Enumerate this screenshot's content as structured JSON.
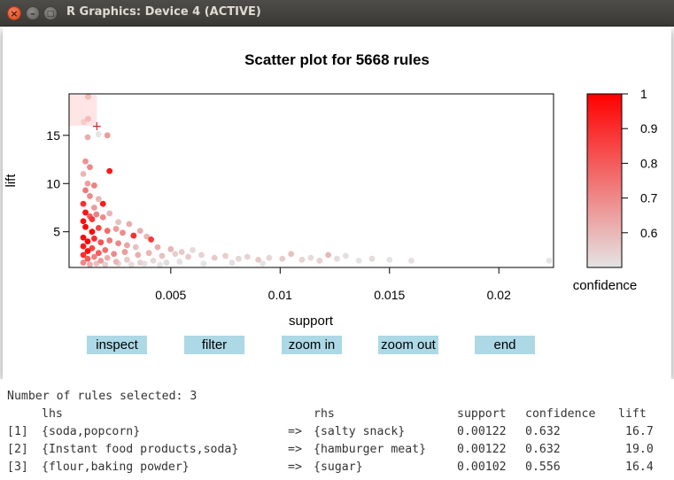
{
  "window": {
    "title": "R Graphics: Device 4 (ACTIVE)",
    "close_glyph": "×",
    "minimize_glyph": "–",
    "maximize_glyph": "□"
  },
  "chart_data": {
    "type": "scatter",
    "title": "Scatter plot for 5668 rules",
    "xlabel": "support",
    "ylabel": "lift",
    "xlim": [
      0.00035,
      0.0225
    ],
    "ylim": [
      1.3,
      19.3
    ],
    "x_ticks": [
      0.005,
      0.01,
      0.015,
      0.02
    ],
    "x_tick_labels": [
      "0.005",
      "0.01",
      "0.015",
      "0.02"
    ],
    "y_ticks": [
      5,
      10,
      15
    ],
    "y_tick_labels": [
      "5",
      "10",
      "15"
    ],
    "color_scale": {
      "label": "confidence",
      "min": 0.5,
      "max": 1.0,
      "ticks": [
        0.6,
        0.7,
        0.8,
        0.9,
        1.0
      ],
      "tick_labels": [
        "0.6",
        "0.7",
        "0.8",
        "0.9",
        "1"
      ],
      "low_color": "#e4e4e4",
      "high_color": "#ff0000"
    },
    "selection": {
      "support_range": [
        0.00102,
        0.00122
      ],
      "lift_range": [
        16.0,
        19.2
      ],
      "marker": "+"
    },
    "points": [
      {
        "x": 0.00122,
        "y": 19.0,
        "c": 0.632
      },
      {
        "x": 0.00102,
        "y": 16.4,
        "c": 0.556
      },
      {
        "x": 0.00122,
        "y": 16.7,
        "c": 0.632
      },
      {
        "x": 0.0012,
        "y": 14.8,
        "c": 0.62
      },
      {
        "x": 0.0017,
        "y": 15.1,
        "c": 0.5
      },
      {
        "x": 0.0021,
        "y": 15.0,
        "c": 0.66
      },
      {
        "x": 0.0022,
        "y": 11.3,
        "c": 0.95
      },
      {
        "x": 0.0011,
        "y": 12.3,
        "c": 0.68
      },
      {
        "x": 0.0013,
        "y": 11.7,
        "c": 0.7
      },
      {
        "x": 0.001,
        "y": 11.0,
        "c": 0.6
      },
      {
        "x": 0.0012,
        "y": 10.0,
        "c": 0.65
      },
      {
        "x": 0.0015,
        "y": 9.8,
        "c": 0.72
      },
      {
        "x": 0.0011,
        "y": 9.3,
        "c": 0.74
      },
      {
        "x": 0.0013,
        "y": 8.7,
        "c": 0.7
      },
      {
        "x": 0.0017,
        "y": 8.4,
        "c": 0.6
      },
      {
        "x": 0.001,
        "y": 7.9,
        "c": 0.9
      },
      {
        "x": 0.0015,
        "y": 7.5,
        "c": 0.66
      },
      {
        "x": 0.0019,
        "y": 7.9,
        "c": 0.94
      },
      {
        "x": 0.0011,
        "y": 7.0,
        "c": 0.96
      },
      {
        "x": 0.0013,
        "y": 6.6,
        "c": 0.8
      },
      {
        "x": 0.0016,
        "y": 6.8,
        "c": 0.72
      },
      {
        "x": 0.001,
        "y": 6.1,
        "c": 0.97
      },
      {
        "x": 0.0014,
        "y": 6.3,
        "c": 0.88
      },
      {
        "x": 0.0019,
        "y": 6.5,
        "c": 0.7
      },
      {
        "x": 0.0022,
        "y": 6.9,
        "c": 0.6
      },
      {
        "x": 0.0026,
        "y": 6.0,
        "c": 0.58
      },
      {
        "x": 0.0031,
        "y": 5.8,
        "c": 0.62
      },
      {
        "x": 0.0011,
        "y": 5.5,
        "c": 0.99
      },
      {
        "x": 0.0014,
        "y": 5.0,
        "c": 0.98
      },
      {
        "x": 0.0017,
        "y": 5.4,
        "c": 0.85
      },
      {
        "x": 0.0021,
        "y": 5.1,
        "c": 0.77
      },
      {
        "x": 0.0025,
        "y": 5.3,
        "c": 0.66
      },
      {
        "x": 0.0028,
        "y": 4.9,
        "c": 0.7
      },
      {
        "x": 0.0033,
        "y": 4.6,
        "c": 0.9
      },
      {
        "x": 0.0036,
        "y": 5.1,
        "c": 0.62
      },
      {
        "x": 0.0041,
        "y": 4.2,
        "c": 0.87
      },
      {
        "x": 0.0039,
        "y": 4.5,
        "c": 0.6
      },
      {
        "x": 0.001,
        "y": 4.4,
        "c": 0.98
      },
      {
        "x": 0.0012,
        "y": 4.0,
        "c": 0.99
      },
      {
        "x": 0.0015,
        "y": 4.3,
        "c": 0.9
      },
      {
        "x": 0.0018,
        "y": 3.9,
        "c": 0.82
      },
      {
        "x": 0.0022,
        "y": 4.1,
        "c": 0.74
      },
      {
        "x": 0.0026,
        "y": 3.8,
        "c": 0.7
      },
      {
        "x": 0.003,
        "y": 3.6,
        "c": 0.64
      },
      {
        "x": 0.0034,
        "y": 3.4,
        "c": 0.58
      },
      {
        "x": 0.0044,
        "y": 3.4,
        "c": 0.62
      },
      {
        "x": 0.005,
        "y": 3.2,
        "c": 0.6
      },
      {
        "x": 0.0055,
        "y": 2.9,
        "c": 0.56
      },
      {
        "x": 0.006,
        "y": 3.1,
        "c": 0.52
      },
      {
        "x": 0.001,
        "y": 3.5,
        "c": 0.95
      },
      {
        "x": 0.0012,
        "y": 3.0,
        "c": 0.97
      },
      {
        "x": 0.0014,
        "y": 3.3,
        "c": 0.85
      },
      {
        "x": 0.0017,
        "y": 2.8,
        "c": 0.8
      },
      {
        "x": 0.002,
        "y": 3.1,
        "c": 0.76
      },
      {
        "x": 0.0024,
        "y": 2.7,
        "c": 0.7
      },
      {
        "x": 0.0029,
        "y": 2.9,
        "c": 0.66
      },
      {
        "x": 0.0035,
        "y": 2.6,
        "c": 0.62
      },
      {
        "x": 0.004,
        "y": 2.8,
        "c": 0.6
      },
      {
        "x": 0.0046,
        "y": 2.5,
        "c": 0.58
      },
      {
        "x": 0.0052,
        "y": 2.7,
        "c": 0.55
      },
      {
        "x": 0.0058,
        "y": 2.4,
        "c": 0.56
      },
      {
        "x": 0.0064,
        "y": 2.6,
        "c": 0.54
      },
      {
        "x": 0.007,
        "y": 2.3,
        "c": 0.56
      },
      {
        "x": 0.0075,
        "y": 2.5,
        "c": 0.55
      },
      {
        "x": 0.0081,
        "y": 2.2,
        "c": 0.53
      },
      {
        "x": 0.0085,
        "y": 2.4,
        "c": 0.54
      },
      {
        "x": 0.009,
        "y": 2.1,
        "c": 0.56
      },
      {
        "x": 0.0095,
        "y": 2.3,
        "c": 0.53
      },
      {
        "x": 0.0101,
        "y": 2.2,
        "c": 0.55
      },
      {
        "x": 0.0105,
        "y": 2.7,
        "c": 0.58
      },
      {
        "x": 0.011,
        "y": 2.1,
        "c": 0.53
      },
      {
        "x": 0.0114,
        "y": 2.3,
        "c": 0.52
      },
      {
        "x": 0.0118,
        "y": 2.0,
        "c": 0.54
      },
      {
        "x": 0.0122,
        "y": 2.6,
        "c": 0.6
      },
      {
        "x": 0.0126,
        "y": 2.2,
        "c": 0.52
      },
      {
        "x": 0.013,
        "y": 2.5,
        "c": 0.51
      },
      {
        "x": 0.0136,
        "y": 2.0,
        "c": 0.5
      },
      {
        "x": 0.0142,
        "y": 2.2,
        "c": 0.52
      },
      {
        "x": 0.015,
        "y": 2.1,
        "c": 0.5
      },
      {
        "x": 0.016,
        "y": 2.0,
        "c": 0.51
      },
      {
        "x": 0.0223,
        "y": 2.0,
        "c": 0.5
      },
      {
        "x": 0.001,
        "y": 2.6,
        "c": 0.9
      },
      {
        "x": 0.0012,
        "y": 2.2,
        "c": 0.8
      },
      {
        "x": 0.0015,
        "y": 2.4,
        "c": 0.72
      },
      {
        "x": 0.0018,
        "y": 2.0,
        "c": 0.66
      },
      {
        "x": 0.0021,
        "y": 2.3,
        "c": 0.62
      },
      {
        "x": 0.0025,
        "y": 1.9,
        "c": 0.6
      },
      {
        "x": 0.003,
        "y": 2.1,
        "c": 0.56
      },
      {
        "x": 0.0036,
        "y": 1.8,
        "c": 0.54
      },
      {
        "x": 0.0042,
        "y": 2.0,
        "c": 0.53
      },
      {
        "x": 0.0048,
        "y": 1.8,
        "c": 0.52
      },
      {
        "x": 0.0054,
        "y": 1.9,
        "c": 0.51
      },
      {
        "x": 0.001,
        "y": 1.8,
        "c": 0.7
      },
      {
        "x": 0.0013,
        "y": 1.6,
        "c": 0.62
      },
      {
        "x": 0.0016,
        "y": 1.7,
        "c": 0.58
      },
      {
        "x": 0.002,
        "y": 1.6,
        "c": 0.55
      },
      {
        "x": 0.0026,
        "y": 1.7,
        "c": 0.53
      },
      {
        "x": 0.0032,
        "y": 1.6,
        "c": 0.52
      },
      {
        "x": 0.0038,
        "y": 1.7,
        "c": 0.51
      },
      {
        "x": 0.0045,
        "y": 1.6,
        "c": 0.5
      },
      {
        "x": 0.0065,
        "y": 1.7,
        "c": 0.5
      },
      {
        "x": 0.0078,
        "y": 1.8,
        "c": 0.51
      },
      {
        "x": 0.0092,
        "y": 1.7,
        "c": 0.5
      }
    ]
  },
  "buttons": [
    "inspect",
    "filter",
    "zoom in",
    "zoom out",
    "end"
  ],
  "console": {
    "header": "Number of rules selected: 3",
    "columns": [
      "lhs",
      "rhs",
      "support",
      "confidence",
      "lift"
    ],
    "rows": [
      {
        "index": "[1]",
        "lhs": "{soda,popcorn}",
        "arrow": "=>",
        "rhs": "{salty snack}",
        "support": "0.00122",
        "confidence": "0.632",
        "lift": "16.7"
      },
      {
        "index": "[2]",
        "lhs": "{Instant food products,soda}",
        "arrow": "=>",
        "rhs": "{hamburger meat}",
        "support": "0.00122",
        "confidence": "0.632",
        "lift": "19.0"
      },
      {
        "index": "[3]",
        "lhs": "{flour,baking powder}",
        "arrow": "=>",
        "rhs": "{sugar}",
        "support": "0.00102",
        "confidence": "0.556",
        "lift": "16.4"
      }
    ]
  }
}
